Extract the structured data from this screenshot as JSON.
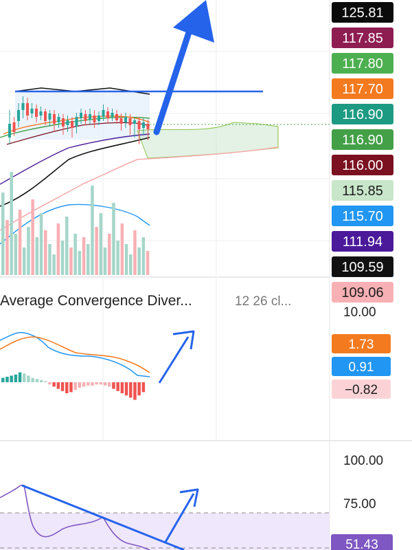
{
  "price_axis": {
    "badges": [
      {
        "value": "125.81",
        "bg": "#0b0b0b",
        "fg": "#ffffff"
      },
      {
        "value": "117.85",
        "bg": "#8e1d52",
        "fg": "#ffffff"
      },
      {
        "value": "117.80",
        "bg": "#4caf50",
        "fg": "#ffffff"
      },
      {
        "value": "117.70",
        "bg": "#f47a1f",
        "fg": "#ffffff"
      },
      {
        "value": "116.90",
        "bg": "#1d9a82",
        "fg": "#ffffff"
      },
      {
        "value": "116.90",
        "bg": "#43a047",
        "fg": "#ffffff"
      },
      {
        "value": "116.00",
        "bg": "#7b1020",
        "fg": "#ffffff"
      },
      {
        "value": "115.85",
        "bg": "#c8e6c9",
        "fg": "#1b1b1b"
      },
      {
        "value": "115.70",
        "bg": "#2196f3",
        "fg": "#ffffff"
      },
      {
        "value": "111.94",
        "bg": "#4a1a9a",
        "fg": "#ffffff"
      },
      {
        "value": "109.59",
        "bg": "#111111",
        "fg": "#ffffff"
      },
      {
        "value": "109.06",
        "bg": "#f7b0b4",
        "fg": "#1b1b1b"
      }
    ]
  },
  "macd": {
    "title": "Average Convergence Diver...",
    "params": "12 26 cl...",
    "axis_label": "10.00",
    "badges": [
      {
        "value": "1.73",
        "bg": "#f47a1f",
        "fg": "#ffffff"
      },
      {
        "value": "0.91",
        "bg": "#2196f3",
        "fg": "#ffffff"
      },
      {
        "value": "−0.82",
        "bg": "#fbd3d6",
        "fg": "#1b1b1b"
      }
    ]
  },
  "rsi": {
    "axis_labels": [
      "100.00",
      "75.00"
    ],
    "badge": {
      "value": "51.43",
      "bg": "#7e57c2",
      "fg": "#ffffff"
    }
  },
  "chart_data": [
    {
      "type": "candlestick",
      "panel": "price",
      "price_levels": [
        125.81,
        117.85,
        117.8,
        117.7,
        116.9,
        116.9,
        116.0,
        115.85,
        115.7,
        111.94,
        109.59,
        109.06
      ],
      "annotations": [
        "horizontal resistance line",
        "upward arrow"
      ]
    },
    {
      "type": "line",
      "panel": "macd",
      "series_values": [
        1.73,
        0.91,
        -0.82
      ],
      "annotations": [
        "upward arrow"
      ]
    },
    {
      "type": "line",
      "panel": "rsi",
      "ylim": [
        0,
        100
      ],
      "current_value": 51.43,
      "annotations": [
        "downward trendline",
        "upward arrow"
      ]
    }
  ],
  "colors": {
    "arrow": "#2563eb",
    "candle_up": "#26a69a",
    "candle_down": "#ef5350",
    "macd_line": "#2196f3",
    "signal_line": "#f47a1f",
    "rsi_line": "#7e57c2"
  }
}
